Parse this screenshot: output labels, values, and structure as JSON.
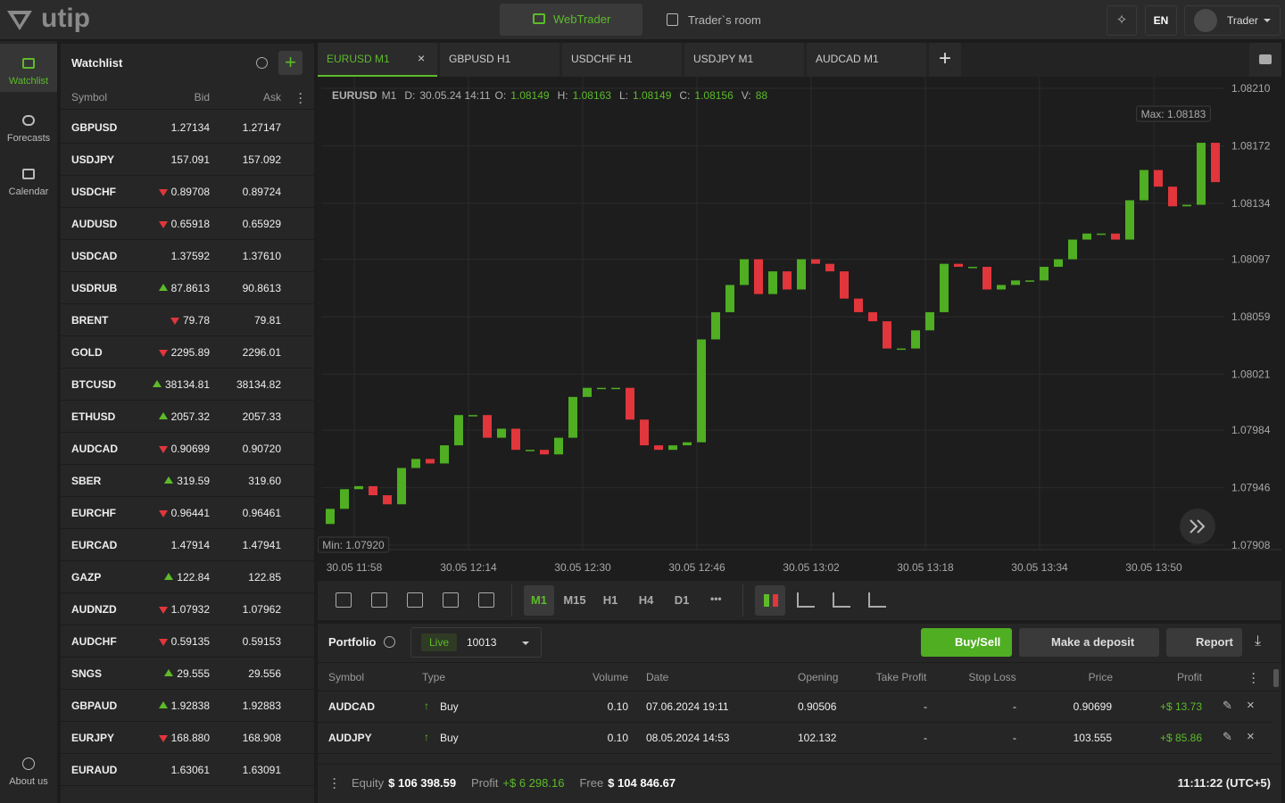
{
  "header": {
    "logo": "utip",
    "nav": [
      "WebTrader",
      "Trader`s room"
    ],
    "lang": "EN",
    "user": "Trader"
  },
  "sidebar": {
    "items": [
      "Watchlist",
      "Forecasts",
      "Calendar"
    ],
    "bottom": "About us"
  },
  "watchlist": {
    "title": "Watchlist",
    "columns": [
      "Symbol",
      "Bid",
      "Ask"
    ],
    "rows": [
      {
        "symbol": "GBPUSD",
        "dir": null,
        "bid": "1.27134",
        "ask": "1.27147"
      },
      {
        "symbol": "USDJPY",
        "dir": null,
        "bid": "157.091",
        "ask": "157.092"
      },
      {
        "symbol": "USDCHF",
        "dir": "down",
        "bid": "0.89708",
        "ask": "0.89724"
      },
      {
        "symbol": "AUDUSD",
        "dir": "down",
        "bid": "0.65918",
        "ask": "0.65929"
      },
      {
        "symbol": "USDCAD",
        "dir": null,
        "bid": "1.37592",
        "ask": "1.37610"
      },
      {
        "symbol": "USDRUB",
        "dir": "up",
        "bid": "87.8613",
        "ask": "90.8613"
      },
      {
        "symbol": "BRENT",
        "dir": "down",
        "bid": "79.78",
        "ask": "79.81"
      },
      {
        "symbol": "GOLD",
        "dir": "down",
        "bid": "2295.89",
        "ask": "2296.01"
      },
      {
        "symbol": "BTCUSD",
        "dir": "up",
        "bid": "38134.81",
        "ask": "38134.82"
      },
      {
        "symbol": "ETHUSD",
        "dir": "up",
        "bid": "2057.32",
        "ask": "2057.33"
      },
      {
        "symbol": "AUDCAD",
        "dir": "down",
        "bid": "0.90699",
        "ask": "0.90720"
      },
      {
        "symbol": "SBER",
        "dir": "up",
        "bid": "319.59",
        "ask": "319.60"
      },
      {
        "symbol": "EURCHF",
        "dir": "down",
        "bid": "0.96441",
        "ask": "0.96461"
      },
      {
        "symbol": "EURCAD",
        "dir": null,
        "bid": "1.47914",
        "ask": "1.47941"
      },
      {
        "symbol": "GAZP",
        "dir": "up",
        "bid": "122.84",
        "ask": "122.85"
      },
      {
        "symbol": "AUDNZD",
        "dir": "down",
        "bid": "1.07932",
        "ask": "1.07962"
      },
      {
        "symbol": "AUDCHF",
        "dir": "down",
        "bid": "0.59135",
        "ask": "0.59153"
      },
      {
        "symbol": "SNGS",
        "dir": "up",
        "bid": "29.555",
        "ask": "29.556"
      },
      {
        "symbol": "GBPAUD",
        "dir": "up",
        "bid": "1.92838",
        "ask": "1.92883"
      },
      {
        "symbol": "EURJPY",
        "dir": "down",
        "bid": "168.880",
        "ask": "168.908"
      },
      {
        "symbol": "EURAUD",
        "dir": null,
        "bid": "1.63061",
        "ask": "1.63091"
      }
    ]
  },
  "tabs": [
    "EURUSD M1",
    "GBPUSD H1",
    "USDCHF H1",
    "USDJPY M1",
    "AUDCAD M1"
  ],
  "chart_info": {
    "symbol": "EURUSD",
    "tf": "M1",
    "d_label": "D:",
    "date": "30.05.24 14:11",
    "o_label": "O:",
    "o": "1.08149",
    "h_label": "H:",
    "h": "1.08163",
    "l_label": "L:",
    "l": "1.08149",
    "c_label": "C:",
    "c": "1.08156",
    "v_label": "V:",
    "v": "88"
  },
  "chart_data": {
    "type": "candlestick",
    "open": [
      1.07922,
      1.07932,
      1.07945,
      1.07947,
      1.07941,
      1.07935,
      1.07959,
      1.07965,
      1.07962,
      1.07974,
      1.07994,
      1.07994,
      1.07979,
      1.07985,
      1.07971,
      1.07971,
      1.07968,
      1.07979,
      1.08006,
      1.08012,
      1.08012,
      1.08012,
      1.07991,
      1.07974,
      1.07971,
      1.07974,
      1.07976,
      1.08044,
      1.08062,
      1.0808,
      1.08097,
      1.08074,
      1.08089,
      1.08077,
      1.08097,
      1.08094,
      1.08089,
      1.08071,
      1.08062,
      1.08056,
      1.08038,
      1.08038,
      1.0805,
      1.08062,
      1.08094,
      1.08092,
      1.08092,
      1.08077,
      1.0808,
      1.08083,
      1.08083,
      1.08092,
      1.08097,
      1.0811,
      1.08114,
      1.08114,
      1.0811,
      1.08136,
      1.08156,
      1.08145,
      1.08132,
      1.08133,
      1.08174
    ],
    "close": [
      1.07932,
      1.07945,
      1.07947,
      1.07941,
      1.07935,
      1.07959,
      1.07965,
      1.07962,
      1.07974,
      1.07994,
      1.07994,
      1.07979,
      1.07985,
      1.07971,
      1.07971,
      1.07968,
      1.07979,
      1.08006,
      1.08012,
      1.08012,
      1.08012,
      1.07991,
      1.07974,
      1.07971,
      1.07974,
      1.07976,
      1.08044,
      1.08062,
      1.0808,
      1.08097,
      1.08074,
      1.08089,
      1.08077,
      1.08097,
      1.08094,
      1.08089,
      1.08071,
      1.08062,
      1.08056,
      1.08038,
      1.08038,
      1.0805,
      1.08062,
      1.08094,
      1.08092,
      1.08092,
      1.08077,
      1.0808,
      1.08083,
      1.08083,
      1.08092,
      1.08097,
      1.0811,
      1.08114,
      1.08114,
      1.0811,
      1.08136,
      1.08156,
      1.08145,
      1.08132,
      1.08133,
      1.08174,
      1.08148
    ],
    "ylim": [
      1.07908,
      1.0821
    ],
    "yticks": [
      {
        "value": 1.0821,
        "label": "1.08210"
      },
      1.08172,
      1.08134,
      1.08097,
      1.08059,
      1.08021,
      1.07984,
      1.07946,
      1.07908
    ],
    "x_labels": [
      "30.05 11:58",
      "30.05 12:14",
      "30.05 12:30",
      "30.05 12:46",
      "30.05 13:02",
      "30.05 13:18",
      "30.05 13:34",
      "30.05 13:50"
    ],
    "max_label": "Max: 1.08183",
    "min_label": "Min: 1.07920",
    "up_color": "#4fae22",
    "down_color": "#e0363c",
    "grid": true
  },
  "timeframes": [
    "M1",
    "M15",
    "H1",
    "H4",
    "D1"
  ],
  "portfolio": {
    "title": "Portfolio",
    "account_type": "Live",
    "account": "10013",
    "buttons": [
      "Buy/Sell",
      "Make a deposit",
      "Report"
    ],
    "columns": [
      "Symbol",
      "Type",
      "Volume",
      "Date",
      "Opening",
      "Take Profit",
      "Stop Loss",
      "Price",
      "Profit"
    ],
    "rows": [
      [
        "AUDCAD",
        "Buy",
        "0.10",
        "07.06.2024 19:11",
        "0.90506",
        "-",
        "-",
        "0.90699",
        "+$ 13.73"
      ],
      [
        "AUDJPY",
        "Buy",
        "0.10",
        "08.05.2024 14:53",
        "102.132",
        "-",
        "-",
        "103.555",
        "+$ 85.86"
      ]
    ]
  },
  "footer": {
    "equity_label": "Equity",
    "equity": "$ 106 398.59",
    "profit_label": "Profit",
    "profit": "+$ 6 298.16",
    "free_label": "Free",
    "free": "$ 104 846.67",
    "time": "11:11:22 (UTC+5)"
  }
}
